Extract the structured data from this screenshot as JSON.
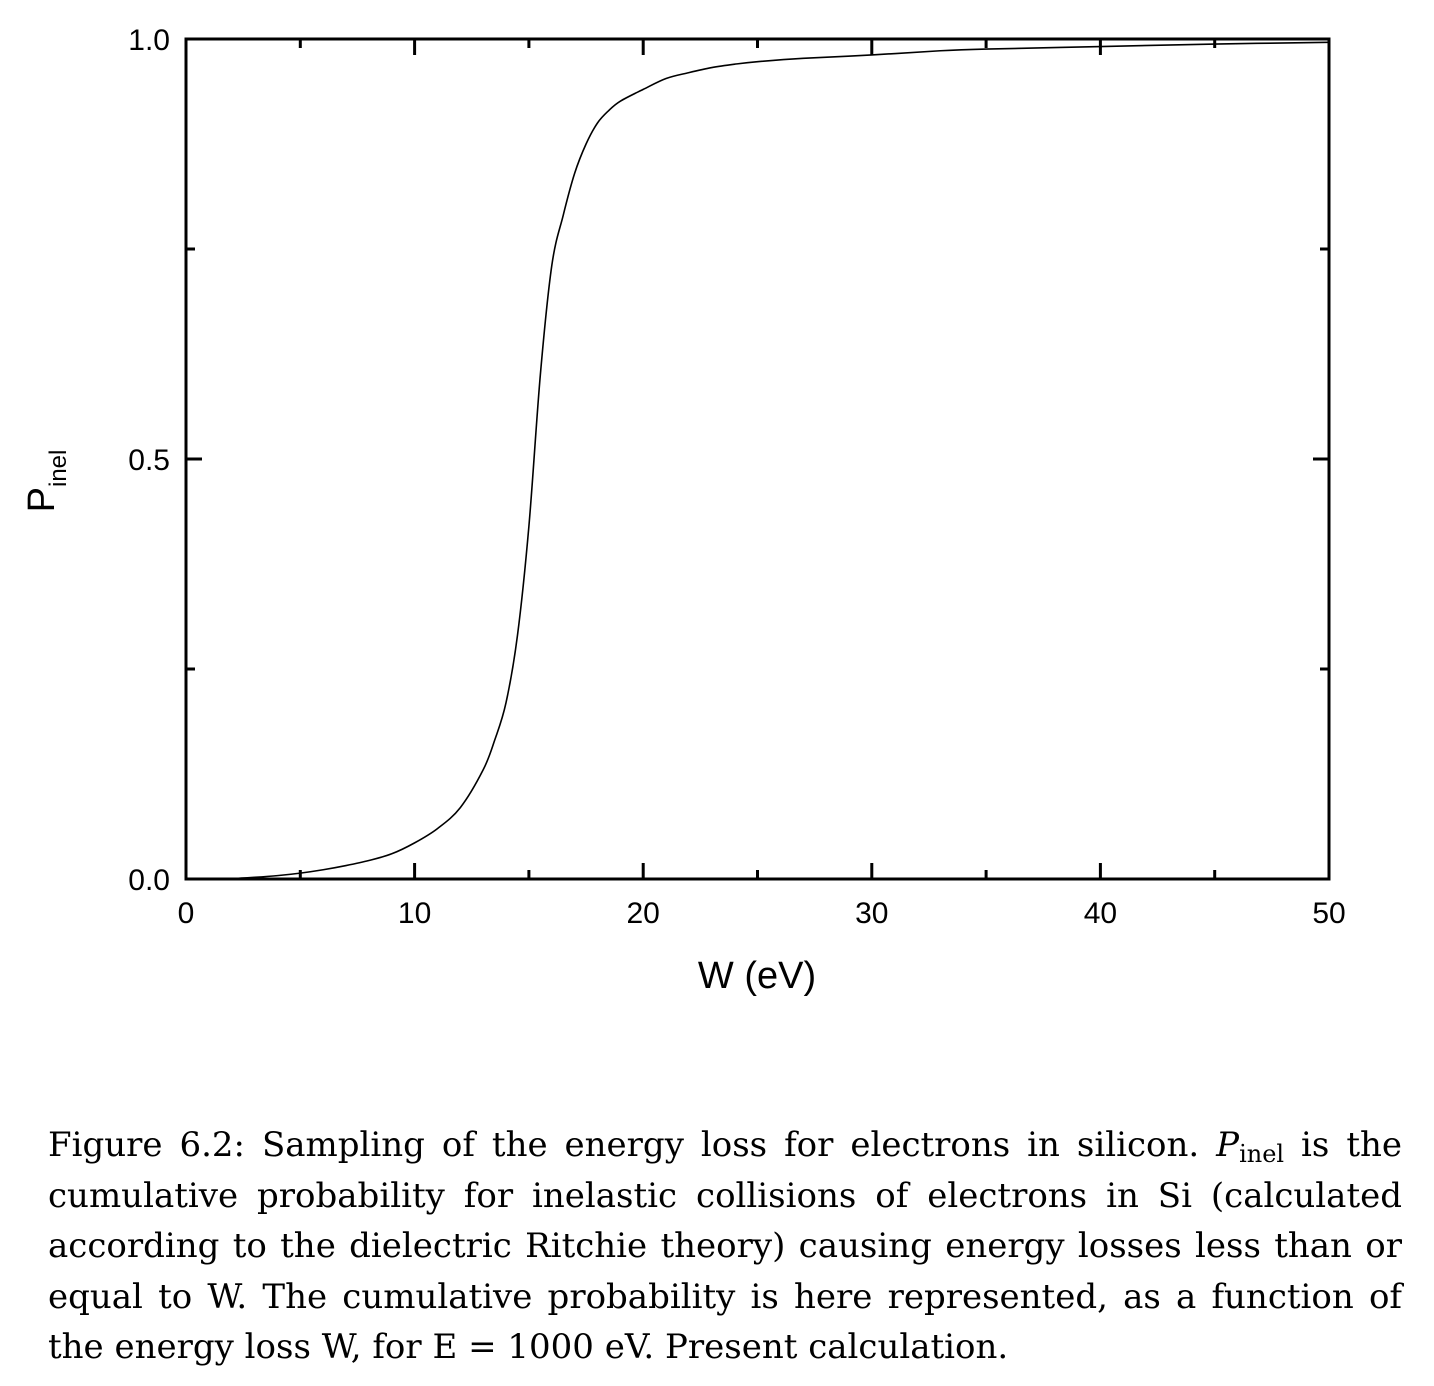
{
  "chart_data": {
    "type": "line",
    "xlabel": "W (eV)",
    "ylabel": "P",
    "ylabel_sub": "inel",
    "xlim": [
      0,
      50
    ],
    "ylim": [
      0,
      1
    ],
    "x_ticks": [
      "0",
      "10",
      "20",
      "30",
      "40",
      "50"
    ],
    "y_ticks": [
      "0.0",
      "0.5",
      "1.0"
    ],
    "grid": false,
    "legend": "none",
    "series": [
      {
        "x": [
          0,
          1,
          2,
          3,
          4,
          5,
          6,
          7,
          8,
          9,
          10,
          11,
          12,
          13,
          13.5,
          14,
          14.5,
          15,
          15.5,
          16,
          16.5,
          17,
          17.5,
          18,
          18.5,
          19,
          20,
          21,
          22,
          23,
          24,
          25,
          27,
          30,
          33,
          35,
          40,
          45,
          50
        ],
        "y": [
          0,
          0,
          0.0005,
          0.002,
          0.004,
          0.007,
          0.011,
          0.016,
          0.022,
          0.03,
          0.043,
          0.06,
          0.085,
          0.13,
          0.165,
          0.21,
          0.29,
          0.42,
          0.6,
          0.73,
          0.79,
          0.84,
          0.875,
          0.9,
          0.915,
          0.926,
          0.94,
          0.953,
          0.96,
          0.966,
          0.97,
          0.973,
          0.977,
          0.981,
          0.986,
          0.988,
          0.991,
          0.994,
          0.996
        ]
      }
    ]
  },
  "caption": {
    "lines": [
      {
        "before": "Figure 6.2: Sampling of the energy loss for electrons in silicon. ",
        "sym": "P",
        "sub": "inel",
        "after": " is the"
      },
      {
        "text": "cumulative probability for inelastic collisions of electrons in Si (calculated"
      },
      {
        "text": "according to the dielectric Ritchie theory) causing energy losses less than or"
      },
      {
        "text": "equal to W. The cumulative probability is here represented, as a function of"
      },
      {
        "text": "the energy loss W, for E = 1000 eV. Present calculation."
      }
    ]
  }
}
